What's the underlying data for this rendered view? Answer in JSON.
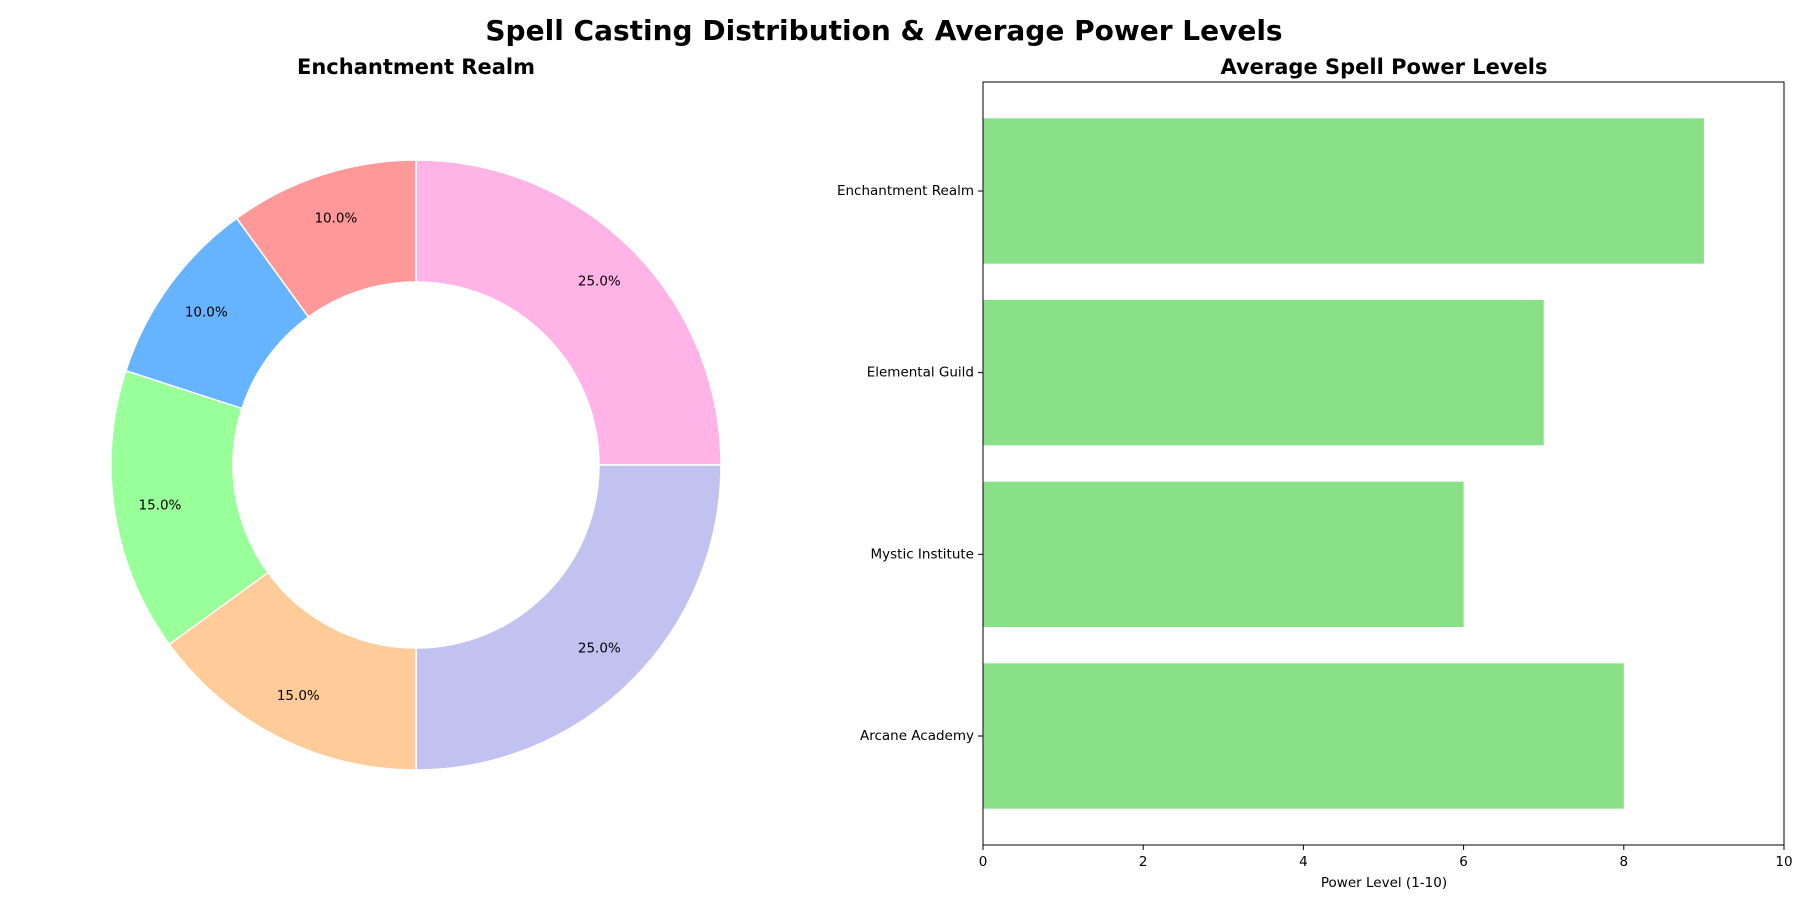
{
  "figure": {
    "title": "Spell Casting Distribution & Average Power Levels"
  },
  "chart_data": [
    {
      "type": "pie",
      "style": "donut",
      "title": "Enchantment Realm",
      "start_angle_deg": 90,
      "direction": "clockwise",
      "slices": [
        {
          "value": 25.0,
          "label": "25.0%",
          "color": "#ffb3e6"
        },
        {
          "value": 25.0,
          "label": "25.0%",
          "color": "#c2c2f0"
        },
        {
          "value": 15.0,
          "label": "15.0%",
          "color": "#ffcc99"
        },
        {
          "value": 15.0,
          "label": "15.0%",
          "color": "#99ff99"
        },
        {
          "value": 10.0,
          "label": "10.0%",
          "color": "#66b3ff"
        },
        {
          "value": 10.0,
          "label": "10.0%",
          "color": "#ff9999"
        }
      ]
    },
    {
      "type": "bar",
      "orientation": "horizontal",
      "title": "Average Spell Power Levels",
      "categories": [
        "Enchantment Realm",
        "Elemental Guild",
        "Mystic Institute",
        "Arcane Academy"
      ],
      "values": [
        9,
        7,
        6,
        8
      ],
      "color": "#88e088",
      "xlabel": "Power Level (1-10)",
      "xlim": [
        0,
        10
      ],
      "xticks": [
        "0",
        "2",
        "4",
        "6",
        "8",
        "10"
      ],
      "grid": false
    }
  ]
}
